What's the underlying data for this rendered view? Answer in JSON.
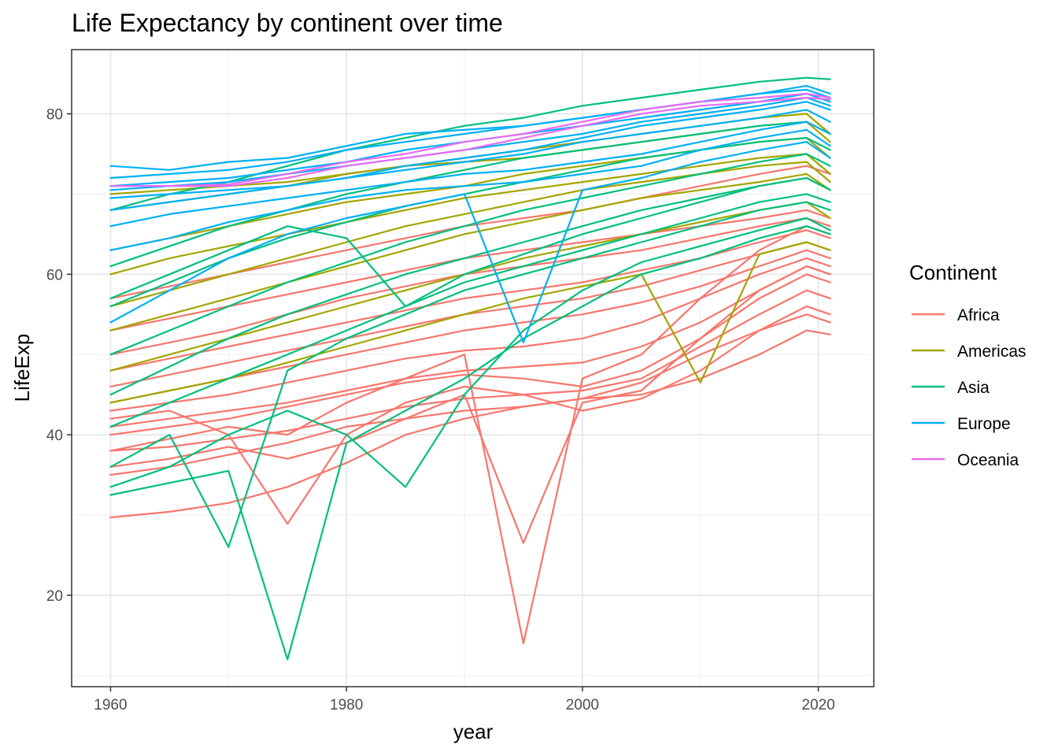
{
  "chart_data": {
    "type": "line",
    "title": "Life Expectancy by continent over time",
    "xlabel": "year",
    "ylabel": "LifeExp",
    "xlim": [
      1956.7,
      2024.7
    ],
    "ylim": [
      8.6,
      88.0
    ],
    "x_ticks": [
      1960,
      1980,
      2000,
      2020
    ],
    "y_ticks": [
      20,
      40,
      60,
      80
    ],
    "grid": true,
    "legend": {
      "title": "Continent",
      "position": "right"
    },
    "x": [
      1960,
      1965,
      1970,
      1975,
      1980,
      1985,
      1990,
      1995,
      2000,
      2005,
      2010,
      2015,
      2019,
      2021
    ],
    "series": [
      {
        "name": "Africa",
        "color": "#F8766D",
        "lines": [
          {
            "values": [
              29.7,
              30.4,
              31.5,
              33.5,
              36.5,
              40.0,
              42.0,
              43.5,
              44.5,
              46.5,
              50.0,
              53.0,
              55.0,
              54.0
            ]
          },
          {
            "values": [
              35.0,
              36.0,
              37.5,
              39.0,
              41.0,
              42.0,
              43.0,
              43.5,
              44.5,
              45.0,
              47.0,
              50.0,
              53.0,
              52.5
            ]
          },
          {
            "values": [
              38.0,
              38.5,
              39.5,
              40.5,
              42.0,
              43.5,
              44.5,
              45.0,
              45.5,
              47.0,
              51.0,
              55.0,
              58.0,
              57.0
            ]
          },
          {
            "values": [
              40.0,
              41.0,
              42.0,
              43.5,
              45.0,
              46.5,
              47.5,
              47.0,
              46.0,
              48.0,
              52.0,
              57.0,
              60.0,
              59.0
            ]
          },
          {
            "values": [
              41.0,
              42.0,
              43.0,
              44.0,
              45.5,
              47.0,
              48.0,
              48.5,
              49.0,
              51.0,
              54.0,
              58.0,
              61.0,
              60.0
            ]
          },
          {
            "values": [
              43.0,
              44.0,
              45.0,
              46.5,
              48.0,
              49.5,
              50.5,
              51.0,
              52.0,
              54.0,
              57.0,
              60.0,
              62.0,
              61.0
            ]
          },
          {
            "values": [
              44.0,
              45.5,
              47.0,
              48.5,
              50.0,
              51.5,
              53.0,
              54.0,
              55.0,
              56.5,
              58.5,
              61.0,
              63.0,
              62.0
            ]
          },
          {
            "values": [
              46.0,
              47.5,
              49.0,
              50.5,
              52.0,
              53.5,
              55.0,
              56.0,
              57.0,
              58.5,
              60.5,
              62.5,
              64.0,
              63.0
            ]
          },
          {
            "values": [
              48.0,
              49.5,
              51.0,
              52.5,
              54.0,
              55.5,
              57.0,
              58.0,
              59.0,
              60.5,
              62.0,
              64.0,
              65.5,
              64.5
            ]
          },
          {
            "values": [
              50.0,
              51.5,
              53.0,
              55.0,
              57.0,
              58.5,
              60.0,
              61.0,
              62.0,
              63.0,
              64.5,
              66.0,
              67.0,
              66.0
            ]
          },
          {
            "values": [
              53.0,
              54.5,
              56.0,
              57.5,
              59.0,
              60.5,
              62.0,
              63.0,
              64.0,
              65.0,
              66.0,
              67.0,
              68.0,
              67.0
            ]
          },
          {
            "values": [
              57.0,
              58.5,
              60.0,
              61.5,
              63.0,
              64.5,
              66.0,
              67.0,
              68.0,
              69.5,
              71.0,
              72.5,
              73.5,
              72.5
            ]
          },
          {
            "values": [
              36.0,
              37.0,
              38.5,
              37.0,
              39.0,
              42.0,
              45.0,
              26.5,
              44.0,
              45.5,
              52.0,
              58.0,
              61.0,
              60.0
            ]
          },
          {
            "values": [
              38.0,
              39.5,
              41.0,
              40.0,
              44.0,
              47.0,
              50.0,
              14.0,
              47.0,
              50.0,
              57.0,
              63.0,
              66.0,
              65.0
            ]
          },
          {
            "values": [
              42.0,
              43.0,
              40.0,
              28.9,
              40.0,
              44.0,
              46.0,
              45.0,
              43.0,
              44.5,
              48.0,
              53.0,
              56.0,
              55.0
            ]
          }
        ]
      },
      {
        "name": "Americas",
        "color": "#A3A500",
        "lines": [
          {
            "values": [
              44.0,
              45.5,
              47.0,
              49.0,
              51.0,
              53.0,
              55.0,
              57.0,
              58.5,
              60.0,
              46.5,
              62.5,
              64.0,
              63.0
            ]
          },
          {
            "values": [
              48.0,
              50.0,
              52.0,
              54.0,
              56.0,
              58.0,
              60.0,
              62.0,
              63.5,
              65.0,
              66.5,
              68.0,
              69.0,
              67.0
            ]
          },
          {
            "values": [
              53.0,
              55.0,
              57.0,
              59.0,
              61.0,
              63.0,
              65.0,
              66.5,
              68.0,
              69.5,
              70.5,
              71.5,
              72.5,
              70.5
            ]
          },
          {
            "values": [
              56.0,
              58.0,
              60.0,
              62.0,
              64.0,
              66.0,
              67.5,
              69.0,
              70.5,
              71.5,
              72.5,
              73.5,
              74.0,
              71.5
            ]
          },
          {
            "values": [
              60.0,
              62.0,
              63.5,
              65.0,
              66.5,
              68.0,
              69.5,
              70.5,
              71.5,
              72.5,
              73.5,
              74.5,
              75.0,
              72.5
            ]
          },
          {
            "values": [
              63.0,
              64.5,
              66.0,
              67.5,
              69.0,
              70.0,
              71.0,
              72.5,
              73.5,
              74.5,
              75.5,
              76.5,
              77.0,
              74.5
            ]
          },
          {
            "values": [
              68.0,
              69.0,
              70.0,
              71.0,
              72.5,
              73.5,
              74.5,
              75.5,
              76.5,
              77.5,
              78.5,
              79.5,
              80.0,
              77.5
            ]
          },
          {
            "values": [
              70.0,
              70.5,
              71.0,
              71.5,
              72.5,
              73.5,
              74.0,
              74.5,
              75.5,
              76.5,
              77.5,
              78.5,
              79.0,
              76.5
            ]
          }
        ]
      },
      {
        "name": "Asia",
        "color": "#00BF7D",
        "lines": [
          {
            "values": [
              32.5,
              34.0,
              35.5,
              12.0,
              39.0,
              43.0,
              47.0,
              52.0,
              56.0,
              60.0,
              62.0,
              64.5,
              66.0,
              65.0
            ]
          },
          {
            "values": [
              33.5,
              36.0,
              40.0,
              43.0,
              40.0,
              33.5,
              45.0,
              53.0,
              58.0,
              61.5,
              63.5,
              65.5,
              67.0,
              65.5
            ]
          },
          {
            "values": [
              36.0,
              40.0,
              26.0,
              48.0,
              52.0,
              55.0,
              58.0,
              60.0,
              62.0,
              64.0,
              66.0,
              68.0,
              69.0,
              68.0
            ]
          },
          {
            "values": [
              41.0,
              44.0,
              47.0,
              50.0,
              53.0,
              56.0,
              59.0,
              61.0,
              63.0,
              65.0,
              67.0,
              69.0,
              70.0,
              69.0
            ]
          },
          {
            "values": [
              45.0,
              48.5,
              52.0,
              55.0,
              57.5,
              60.0,
              62.0,
              64.0,
              66.0,
              68.0,
              69.5,
              71.0,
              72.0,
              70.5
            ]
          },
          {
            "values": [
              50.0,
              53.0,
              56.0,
              59.0,
              61.5,
              64.0,
              66.0,
              68.0,
              69.5,
              71.0,
              72.5,
              74.0,
              75.0,
              73.5
            ]
          },
          {
            "values": [
              56.0,
              59.0,
              62.0,
              64.5,
              66.5,
              68.5,
              70.0,
              71.5,
              73.0,
              74.5,
              75.5,
              76.5,
              77.0,
              75.5
            ]
          },
          {
            "values": [
              61.0,
              63.5,
              66.0,
              68.0,
              70.0,
              71.5,
              73.0,
              74.5,
              75.5,
              76.5,
              77.5,
              78.5,
              79.0,
              77.5
            ]
          },
          {
            "values": [
              68.0,
              70.0,
              71.5,
              73.5,
              75.5,
              77.0,
              78.5,
              79.5,
              81.0,
              82.0,
              83.0,
              84.0,
              84.5,
              84.3
            ]
          },
          {
            "values": [
              57.0,
              60.0,
              63.0,
              66.0,
              64.5,
              56.0,
              60.0,
              62.5,
              65.0,
              67.0,
              69.0,
              71.0,
              72.0,
              70.5
            ]
          }
        ]
      },
      {
        "name": "Europe",
        "color": "#00B0F6",
        "lines": [
          {
            "values": [
              54.0,
              58.0,
              62.0,
              65.0,
              67.0,
              68.5,
              70.0,
              51.5,
              70.5,
              72.0,
              74.0,
              75.5,
              76.5,
              74.5
            ]
          },
          {
            "values": [
              63.0,
              64.5,
              66.5,
              68.0,
              69.5,
              70.5,
              71.0,
              71.5,
              72.5,
              73.5,
              75.5,
              77.0,
              78.0,
              76.0
            ]
          },
          {
            "values": [
              66.0,
              67.5,
              68.5,
              69.5,
              70.5,
              71.5,
              72.5,
              73.0,
              74.0,
              75.0,
              76.5,
              78.0,
              79.0,
              77.5
            ]
          },
          {
            "values": [
              68.0,
              69.0,
              70.0,
              71.0,
              72.0,
              73.0,
              74.0,
              75.0,
              76.5,
              77.5,
              78.5,
              79.5,
              80.5,
              79.0
            ]
          },
          {
            "values": [
              69.5,
              70.0,
              70.5,
              71.0,
              72.0,
              73.5,
              74.5,
              75.5,
              77.0,
              78.5,
              79.5,
              80.5,
              81.5,
              80.5
            ]
          },
          {
            "values": [
              70.5,
              71.0,
              71.5,
              72.5,
              73.5,
              74.5,
              75.5,
              76.5,
              77.5,
              79.0,
              80.0,
              81.0,
              82.0,
              81.0
            ]
          },
          {
            "values": [
              71.0,
              71.5,
              72.0,
              73.0,
              74.0,
              75.5,
              76.5,
              77.5,
              78.5,
              79.5,
              80.5,
              81.5,
              82.5,
              81.5
            ]
          },
          {
            "values": [
              72.0,
              72.5,
              73.0,
              74.0,
              75.5,
              76.5,
              77.5,
              78.5,
              79.5,
              80.5,
              81.5,
              82.5,
              83.0,
              82.0
            ]
          },
          {
            "values": [
              73.5,
              73.0,
              74.0,
              74.5,
              76.0,
              77.5,
              78.0,
              78.5,
              79.5,
              80.5,
              81.5,
              82.5,
              83.5,
              82.5
            ]
          }
        ]
      },
      {
        "name": "Oceania",
        "color": "#E76BF3",
        "lines": [
          {
            "values": [
              71.0,
              71.0,
              71.2,
              72.5,
              74.0,
              75.0,
              76.5,
              77.5,
              79.0,
              80.5,
              81.5,
              82.0,
              82.5,
              82.0
            ]
          },
          {
            "values": [
              71.0,
              71.0,
              71.0,
              72.0,
              73.5,
              74.5,
              75.5,
              77.0,
              78.5,
              80.0,
              81.0,
              81.5,
              82.0,
              81.8
            ]
          }
        ]
      }
    ]
  }
}
